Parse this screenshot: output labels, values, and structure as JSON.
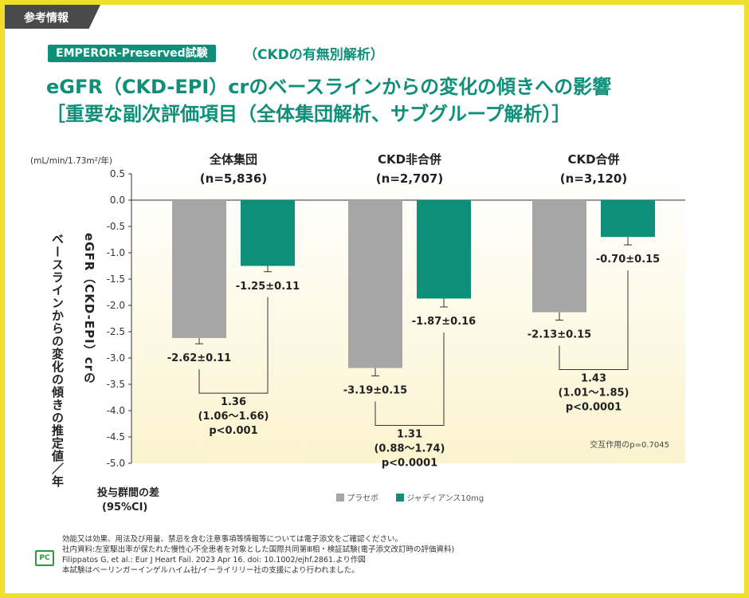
{
  "header": {
    "tag": "参考情報",
    "trial_badge": "EMPEROR-Preserved試験",
    "trial_sub": "（CKDの有無別解析）",
    "title_line1": "eGFR（CKD-EPI）crのベースラインからの変化の傾きへの影響",
    "title_line2": "［重要な副次評価項目（全体集団解析、サブグループ解析）］"
  },
  "chart_data": {
    "type": "bar",
    "unit": "(mL/min/1.73m²/年)",
    "ylabel": "eGFR（CKD-EPI）crのベースラインからの変化の傾きの推定値／年",
    "ylim": [
      -5.0,
      0.5
    ],
    "yticks": [
      "0.5",
      "0.0",
      "-0.5",
      "-1.0",
      "-1.5",
      "-2.0",
      "-2.5",
      "-3.0",
      "-3.5",
      "-4.0",
      "-4.5",
      "-5.0"
    ],
    "series": [
      {
        "name": "プラセボ",
        "color": "#a6a6a6"
      },
      {
        "name": "ジャディアンス10mg",
        "color": "#0e8f79"
      }
    ],
    "groups": [
      {
        "name": "全体集団",
        "n": "(n=5,836)",
        "values": [
          -2.62,
          -1.25
        ],
        "errors": [
          0.11,
          0.11
        ],
        "labels": [
          "-2.62±0.11",
          "-1.25±0.11"
        ],
        "diff": [
          "1.36",
          "(1.06～1.66)",
          "p<0.001"
        ]
      },
      {
        "name": "CKD非合併",
        "n": "(n=2,707)",
        "values": [
          -3.19,
          -1.87
        ],
        "errors": [
          0.15,
          0.16
        ],
        "labels": [
          "-3.19±0.15",
          "-1.87±0.16"
        ],
        "diff": [
          "1.31",
          "(0.88～1.74)",
          "p<0.0001"
        ]
      },
      {
        "name": "CKD合併",
        "n": "(n=3,120)",
        "values": [
          -2.13,
          -0.7
        ],
        "errors": [
          0.15,
          0.15
        ],
        "labels": [
          "-2.13±0.15",
          "-0.70±0.15"
        ],
        "diff": [
          "1.43",
          "(1.01～1.85)",
          "p<0.0001"
        ]
      }
    ],
    "interaction": "交互作用のp=0.7045",
    "diff_label": [
      "投与群間の差",
      "(95%CI)"
    ]
  },
  "footer": {
    "logo": "PC",
    "line1": "効能又は効果、用法及び用量、禁忌を含む注意事項等情報等については電子添文をご確認ください。",
    "line2": "社内資料:左室駆出率が保たれた慢性心不全患者を対象とした国際共同第Ⅲ相・検証試験(電子添文改訂時の評価資料)",
    "line3": "Filippatos G, et al.: Eur J Heart Fail. 2023 Apr 16. doi: 10.1002/ejhf.2861.より作図",
    "line4": "本試験はベーリンガーインゲルハイム社/イーライリリー社の支援により行われました。"
  }
}
